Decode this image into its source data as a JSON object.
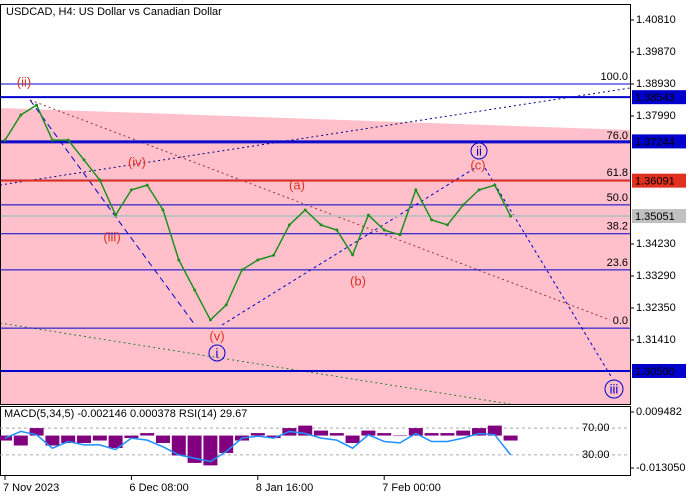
{
  "chart_data": {
    "type": "line",
    "title": "USDCAD, H4:  US Dollar vs Canadian Dollar",
    "categories": [
      "7 Nov 2023",
      null,
      null,
      null,
      null,
      null,
      null,
      null,
      "6 Dec 08:00",
      null,
      null,
      null,
      null,
      null,
      null,
      null,
      "8 Jan 16:00",
      null,
      null,
      null,
      null,
      null,
      null,
      null,
      "7 Feb 00:00",
      null,
      null,
      null,
      null,
      null,
      null,
      null,
      null
    ],
    "values": [
      1.3728,
      1.3802,
      1.3831,
      1.3728,
      1.3728,
      1.367,
      1.3611,
      1.3508,
      1.3582,
      1.3596,
      1.3523,
      1.3376,
      1.3288,
      1.32,
      1.3244,
      1.3347,
      1.3376,
      1.339,
      1.3479,
      1.3523,
      1.3479,
      1.3464,
      1.3391,
      1.3508,
      1.3464,
      1.345,
      1.3582,
      1.3494,
      1.3479,
      1.3538,
      1.3582,
      1.3596,
      1.3505
    ],
    "color": "#1f8f1f",
    "ylim": [
      1.2953,
      1.4128
    ],
    "yticks": [
      {
        "value": 1.4081,
        "label": "1.40810"
      },
      {
        "value": 1.3987,
        "label": "1.39870"
      },
      {
        "value": 1.3893,
        "label": "1.38930"
      },
      {
        "value": 1.3799,
        "label": "1.37990"
      },
      {
        "value": 1.3423,
        "label": "1.34230"
      },
      {
        "value": 1.3329,
        "label": "1.33290"
      },
      {
        "value": 1.3235,
        "label": "1.32350"
      },
      {
        "value": 1.3141,
        "label": "1.31410"
      }
    ],
    "grid": false,
    "fib_levels": [
      {
        "label": "100.0",
        "price": 1.3893
      },
      {
        "label": "76.0",
        "price": 1.372
      },
      {
        "label": "61.8",
        "price": 1.3611
      },
      {
        "label": "50.0",
        "price": 1.3538
      },
      {
        "label": "38.2",
        "price": 1.3453
      },
      {
        "label": "23.6",
        "price": 1.3347
      },
      {
        "label": "0.0",
        "price": 1.3176
      }
    ],
    "price_labels": [
      {
        "value": 1.38543,
        "label": "1.38543",
        "color": "#0000cc"
      },
      {
        "value": 1.37244,
        "label": "1.37244",
        "color": "#0000cc"
      },
      {
        "value": 1.36091,
        "label": "1.36091",
        "color": "#e0301e"
      },
      {
        "value": 1.35051,
        "label": "1.35051",
        "color": "#c0c0c0"
      },
      {
        "value": 1.305,
        "label": "1.30500",
        "color": "#0000cc"
      }
    ],
    "wave_labels": [
      "(ii)",
      "(iv)",
      "(iii)",
      "(v)",
      "i",
      "(a)",
      "(b)",
      "(c)",
      "ii",
      "iii"
    ],
    "indicator": {
      "title": "MACD(5,34,5) -0.002146 0.000378 RSI(14) 29.67",
      "macd": {
        "color": "#800080",
        "values": [
          -0.002,
          -0.004,
          0.003,
          -0.004,
          -0.003,
          -0.003,
          -0.002,
          -0.005,
          -0.001,
          0.001,
          -0.003,
          -0.008,
          -0.011,
          -0.012,
          -0.007,
          -0.002,
          0.001,
          -0.001,
          0.003,
          0.004,
          0.002,
          0.001,
          -0.003,
          0.002,
          0.001,
          0.0,
          0.003,
          0.001,
          0.001,
          0.002,
          0.003,
          0.004,
          -0.002
        ]
      },
      "rsi": {
        "color": "#1e90ff",
        "values": [
          55,
          65,
          60,
          40,
          50,
          45,
          45,
          38,
          55,
          52,
          42,
          30,
          25,
          20,
          35,
          55,
          58,
          55,
          65,
          62,
          55,
          52,
          40,
          60,
          50,
          48,
          62,
          50,
          50,
          55,
          62,
          60,
          30
        ]
      },
      "ylim": [
        -0.015867,
        0.011091
      ],
      "yticks": [
        0.009482,
        {
          "value": -0.01305,
          "label": "-0.013050"
        }
      ],
      "y2lim": [
        0,
        100
      ],
      "y2ticks": [
        {
          "value": 70,
          "label": "70.00"
        },
        {
          "value": 30,
          "label": "30.00"
        }
      ]
    }
  }
}
